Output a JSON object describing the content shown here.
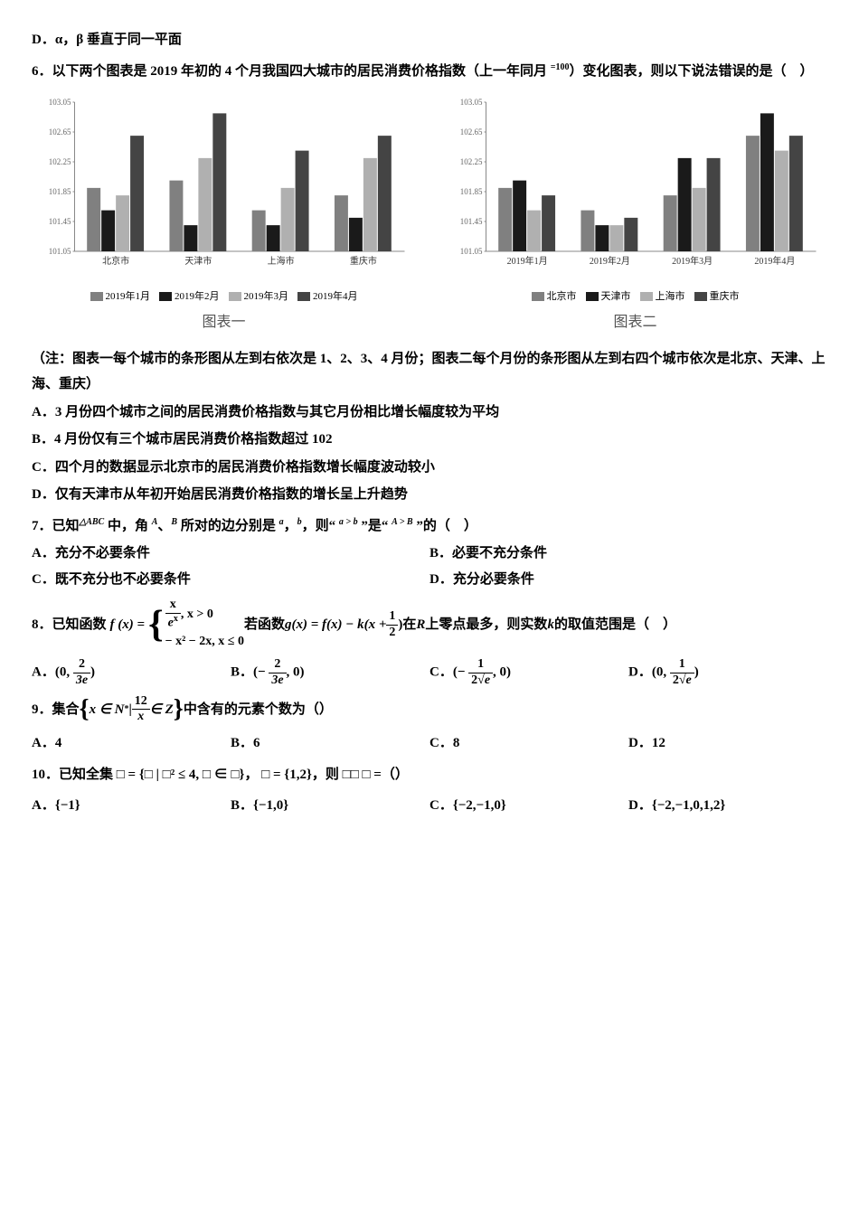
{
  "q5d": "D．α，β 垂直于同一平面",
  "q6": {
    "stem_pre": "6．以下两个图表是 2019 年初的 4 个月我国四大城市的居民消费价格指数（上一年同月 ",
    "eq100": "=100",
    "stem_post": "）变化图表，则以下说法错误的是（　）",
    "chart1": {
      "caption": "图表一",
      "x_labels": [
        "北京市",
        "天津市",
        "上海市",
        "重庆市"
      ],
      "legend": [
        "2019年1月",
        "2019年2月",
        "2019年3月",
        "2019年4月"
      ],
      "colors": [
        "#808080",
        "#1a1a1a",
        "#b0b0b0",
        "#444444"
      ],
      "y_ticks": [
        101.05,
        101.45,
        101.85,
        102.25,
        102.65,
        103.05
      ],
      "data": [
        [
          101.9,
          101.6,
          101.8,
          102.6
        ],
        [
          102.0,
          101.4,
          102.3,
          102.9
        ],
        [
          101.6,
          101.4,
          101.9,
          102.4
        ],
        [
          101.8,
          101.5,
          102.3,
          102.6
        ]
      ],
      "bg": "#ffffff",
      "axis_color": "#888888"
    },
    "chart2": {
      "caption": "图表二",
      "x_labels": [
        "2019年1月",
        "2019年2月",
        "2019年3月",
        "2019年4月"
      ],
      "legend": [
        "北京市",
        "天津市",
        "上海市",
        "重庆市"
      ],
      "colors": [
        "#808080",
        "#1a1a1a",
        "#b0b0b0",
        "#444444"
      ],
      "y_ticks": [
        101.05,
        101.45,
        101.85,
        102.25,
        102.65,
        103.05
      ],
      "data": [
        [
          101.9,
          102.0,
          101.6,
          101.8
        ],
        [
          101.6,
          101.4,
          101.4,
          101.5
        ],
        [
          101.8,
          102.3,
          101.9,
          102.3
        ],
        [
          102.6,
          102.9,
          102.4,
          102.6
        ]
      ],
      "bg": "#ffffff",
      "axis_color": "#888888"
    },
    "note": "（注：图表一每个城市的条形图从左到右依次是 1、2、3、4 月份；图表二每个月份的条形图从左到右四个城市依次是北京、天津、上海、重庆）",
    "A": "A．3 月份四个城市之间的居民消费价格指数与其它月份相比增长幅度较为平均",
    "B": "B．4 月份仅有三个城市居民消费价格指数超过 102",
    "C": "C．四个月的数据显示北京市的居民消费价格指数增长幅度波动较小",
    "D": "D．仅有天津市从年初开始居民消费价格指数的增长呈上升趋势"
  },
  "q7": {
    "stem_parts": [
      "7．已知",
      "△ABC",
      " 中，角 ",
      "A",
      "、",
      "B",
      " 所对的边分别是 ",
      "a",
      "，",
      "b",
      "，则“ ",
      "a > b",
      " ”是“ ",
      "A > B",
      " ”的（　）"
    ],
    "A": "A．充分不必要条件",
    "B": "B．必要不充分条件",
    "C": "C．既不充分也不必要条件",
    "D": "D．充分必要条件"
  },
  "q8": {
    "pre": "8．已知函数 ",
    "fx": "f (x) =",
    "case1_num": "x",
    "case1_den": "e",
    "case1_exp": "x",
    "case1_cond": ", x > 0",
    "case2": "− x² − 2x, x ≤ 0",
    "mid": " 若函数 ",
    "gx": "g(x) = f(x) − k(x + ",
    "half_num": "1",
    "half_den": "2",
    "gx_post": ")",
    "after": " 在 ",
    "R_var": "R",
    "after2": " 上零点最多，则实数 ",
    "k_var": "k",
    "after3": " 的取值范围是（　）",
    "A_pre": "A．(0, ",
    "A_num": "2",
    "A_den": "3e",
    "A_post": ")",
    "B_pre": "B．(− ",
    "B_num": "2",
    "B_den": "3e",
    "B_post": ", 0)",
    "C_pre": "C．(− ",
    "C_num": "1",
    "C_den_pre": "2",
    "C_den_sqrt": "e",
    "C_post": ", 0)",
    "D_pre": "D．(0, ",
    "D_num": "1",
    "D_den_pre": "2",
    "D_den_sqrt": "e",
    "D_post": ")"
  },
  "q9": {
    "pre": "9．集合 ",
    "set_open": "{",
    "set_body1": "x ∈ N",
    "set_star": "*",
    "set_bar": " | ",
    "set_frac_num": "12",
    "set_frac_den": "x",
    "set_body2": " ∈ Z",
    "set_close": "}",
    "post": " 中含有的元素个数为（）",
    "A": "A．4",
    "B": "B．6",
    "C": "C．8",
    "D": "D．12"
  },
  "q10": {
    "stem": "10．已知全集 □ = {□ | □² ≤ 4, □ ∈ □}， □ = {1,2}，则 □□ □ =（）",
    "A": "A．{−1}",
    "B": "B．{−1,0}",
    "C": "C．{−2,−1,0}",
    "D": "D．{−2,−1,0,1,2}"
  }
}
